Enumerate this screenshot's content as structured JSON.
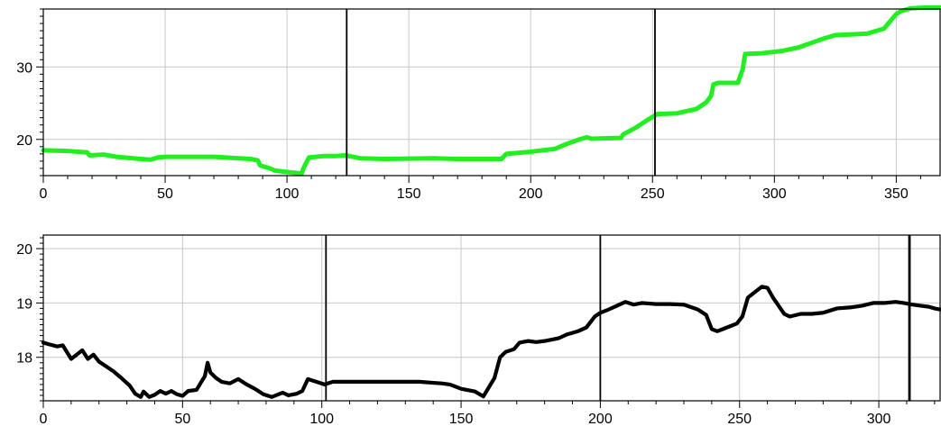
{
  "chart_data": [
    {
      "type": "line",
      "title": "",
      "xlabel": "",
      "ylabel": "",
      "xlim": [
        0,
        368
      ],
      "ylim": [
        15,
        38
      ],
      "grid": true,
      "x_ticks": [
        0,
        50,
        100,
        150,
        200,
        250,
        300,
        350
      ],
      "y_ticks": [
        20,
        30
      ],
      "y_minor_step": 1,
      "x_minor_step": 10,
      "vertical_markers": [
        124.5,
        251
      ],
      "series": [
        {
          "color": "#22ee22",
          "points": [
            [
              0,
              18.5
            ],
            [
              10,
              18.4
            ],
            [
              18,
              18.2
            ],
            [
              19,
              17.8
            ],
            [
              25,
              17.9
            ],
            [
              30,
              17.6
            ],
            [
              40,
              17.3
            ],
            [
              44,
              17.2
            ],
            [
              47,
              17.5
            ],
            [
              50,
              17.6
            ],
            [
              70,
              17.6
            ],
            [
              85,
              17.3
            ],
            [
              88,
              17.1
            ],
            [
              89,
              16.4
            ],
            [
              93,
              16
            ],
            [
              95,
              15.7
            ],
            [
              100,
              15.5
            ],
            [
              106,
              15.3
            ],
            [
              107,
              16.2
            ],
            [
              109,
              17.5
            ],
            [
              115,
              17.7
            ],
            [
              120,
              17.7
            ],
            [
              124,
              17.8
            ],
            [
              130,
              17.4
            ],
            [
              140,
              17.3
            ],
            [
              160,
              17.4
            ],
            [
              170,
              17.3
            ],
            [
              188,
              17.3
            ],
            [
              190,
              18
            ],
            [
              200,
              18.3
            ],
            [
              210,
              18.7
            ],
            [
              215,
              19.4
            ],
            [
              220,
              20
            ],
            [
              223,
              20.3
            ],
            [
              225,
              20.1
            ],
            [
              237,
              20.2
            ],
            [
              238,
              20.7
            ],
            [
              243,
              21.6
            ],
            [
              248,
              22.7
            ],
            [
              252,
              23.5
            ],
            [
              260,
              23.6
            ],
            [
              268,
              24.2
            ],
            [
              272,
              25.1
            ],
            [
              274,
              26
            ],
            [
              275,
              27.6
            ],
            [
              277,
              27.8
            ],
            [
              282,
              27.8
            ],
            [
              285,
              27.8
            ],
            [
              287,
              29.7
            ],
            [
              288,
              31.8
            ],
            [
              295,
              31.9
            ],
            [
              303,
              32.2
            ],
            [
              310,
              32.7
            ],
            [
              315,
              33.3
            ],
            [
              320,
              33.9
            ],
            [
              325,
              34.4
            ],
            [
              338,
              34.6
            ],
            [
              345,
              35.3
            ],
            [
              347,
              36.1
            ],
            [
              350,
              37.3
            ],
            [
              352,
              37.7
            ],
            [
              356,
              38.1
            ],
            [
              362,
              38.2
            ],
            [
              368,
              38.2
            ]
          ]
        }
      ]
    },
    {
      "type": "line",
      "title": "",
      "xlabel": "",
      "ylabel": "",
      "xlim": [
        0,
        322
      ],
      "ylim": [
        17.2,
        20.25
      ],
      "grid": true,
      "x_ticks": [
        0,
        50,
        100,
        150,
        200,
        250,
        300
      ],
      "y_ticks": [
        18,
        19,
        20
      ],
      "y_minor_step": 0.1,
      "x_minor_step": 10,
      "vertical_markers": [
        101.5,
        200,
        311
      ],
      "series": [
        {
          "color": "#000000",
          "points": [
            [
              0,
              18.27
            ],
            [
              2,
              18.24
            ],
            [
              5,
              18.2
            ],
            [
              7,
              18.22
            ],
            [
              10,
              17.97
            ],
            [
              12,
              18.05
            ],
            [
              14,
              18.13
            ],
            [
              16,
              17.97
            ],
            [
              18,
              18.05
            ],
            [
              20,
              17.92
            ],
            [
              25,
              17.75
            ],
            [
              28,
              17.62
            ],
            [
              31,
              17.48
            ],
            [
              33,
              17.33
            ],
            [
              35,
              17.27
            ],
            [
              36,
              17.37
            ],
            [
              38,
              17.27
            ],
            [
              40,
              17.31
            ],
            [
              42,
              17.38
            ],
            [
              44,
              17.33
            ],
            [
              46,
              17.38
            ],
            [
              48,
              17.32
            ],
            [
              50,
              17.29
            ],
            [
              52,
              17.38
            ],
            [
              55,
              17.4
            ],
            [
              57,
              17.57
            ],
            [
              58,
              17.65
            ],
            [
              59,
              17.9
            ],
            [
              60,
              17.72
            ],
            [
              62,
              17.62
            ],
            [
              64,
              17.55
            ],
            [
              67,
              17.52
            ],
            [
              70,
              17.6
            ],
            [
              73,
              17.5
            ],
            [
              76,
              17.42
            ],
            [
              79,
              17.32
            ],
            [
              82,
              17.27
            ],
            [
              86,
              17.35
            ],
            [
              88,
              17.3
            ],
            [
              91,
              17.33
            ],
            [
              93,
              17.38
            ],
            [
              95,
              17.6
            ],
            [
              98,
              17.55
            ],
            [
              101,
              17.5
            ],
            [
              104,
              17.55
            ],
            [
              135,
              17.55
            ],
            [
              140,
              17.53
            ],
            [
              143,
              17.52
            ],
            [
              146,
              17.5
            ],
            [
              150,
              17.42
            ],
            [
              155,
              17.37
            ],
            [
              158,
              17.28
            ],
            [
              160,
              17.45
            ],
            [
              162,
              17.62
            ],
            [
              164,
              18.0
            ],
            [
              166,
              18.1
            ],
            [
              169,
              18.15
            ],
            [
              171,
              18.27
            ],
            [
              174,
              18.3
            ],
            [
              177,
              18.28
            ],
            [
              180,
              18.3
            ],
            [
              185,
              18.35
            ],
            [
              188,
              18.42
            ],
            [
              192,
              18.48
            ],
            [
              195,
              18.55
            ],
            [
              198,
              18.75
            ],
            [
              200,
              18.82
            ],
            [
              203,
              18.88
            ],
            [
              206,
              18.95
            ],
            [
              209,
              19.02
            ],
            [
              212,
              18.97
            ],
            [
              215,
              19.0
            ],
            [
              220,
              18.98
            ],
            [
              225,
              18.98
            ],
            [
              230,
              18.97
            ],
            [
              235,
              18.88
            ],
            [
              238,
              18.78
            ],
            [
              240,
              18.52
            ],
            [
              242,
              18.48
            ],
            [
              244,
              18.52
            ],
            [
              247,
              18.58
            ],
            [
              249,
              18.62
            ],
            [
              251,
              18.75
            ],
            [
              253,
              19.1
            ],
            [
              256,
              19.22
            ],
            [
              258,
              19.3
            ],
            [
              260,
              19.28
            ],
            [
              262,
              19.1
            ],
            [
              264,
              18.95
            ],
            [
              266,
              18.8
            ],
            [
              268,
              18.75
            ],
            [
              272,
              18.8
            ],
            [
              276,
              18.8
            ],
            [
              280,
              18.82
            ],
            [
              285,
              18.9
            ],
            [
              290,
              18.92
            ],
            [
              294,
              18.95
            ],
            [
              298,
              19.0
            ],
            [
              302,
              19.0
            ],
            [
              306,
              19.02
            ],
            [
              309,
              19.0
            ],
            [
              312,
              18.97
            ],
            [
              315,
              18.95
            ],
            [
              318,
              18.93
            ],
            [
              320,
              18.9
            ],
            [
              322,
              18.88
            ]
          ]
        }
      ]
    }
  ]
}
